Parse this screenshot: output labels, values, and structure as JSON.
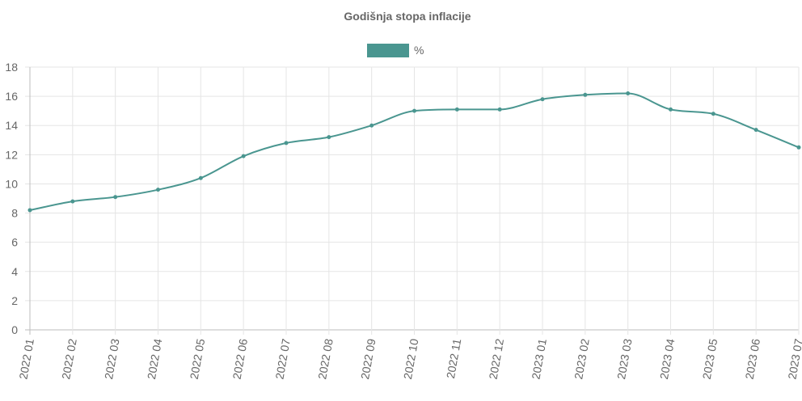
{
  "chart_data": {
    "type": "line",
    "title": "Godišnja stopa inflacije",
    "legend": {
      "position": "top",
      "entries": [
        "%"
      ]
    },
    "grid": true,
    "colors": {
      "series": "#4a9690",
      "grid": "#e5e5e5",
      "text": "#666666"
    },
    "ylim": [
      0,
      18
    ],
    "yticks": [
      "0",
      "2",
      "4",
      "6",
      "8",
      "10",
      "12",
      "14",
      "16",
      "18"
    ],
    "categories": [
      "2022 01",
      "2022 02",
      "2022 03",
      "2022 04",
      "2022 05",
      "2022 06",
      "2022 07",
      "2022 08",
      "2022 09",
      "2022 10",
      "2022 11",
      "2022 12",
      "2023 01",
      "2023 02",
      "2023 03",
      "2023 04",
      "2023 05",
      "2023 06",
      "2023 07"
    ],
    "series": [
      {
        "name": "%",
        "values": [
          8.2,
          8.8,
          9.1,
          9.6,
          10.4,
          11.9,
          12.8,
          13.2,
          14.0,
          15.0,
          15.1,
          15.1,
          15.8,
          16.1,
          16.2,
          15.1,
          14.8,
          13.7,
          12.5
        ]
      }
    ]
  }
}
